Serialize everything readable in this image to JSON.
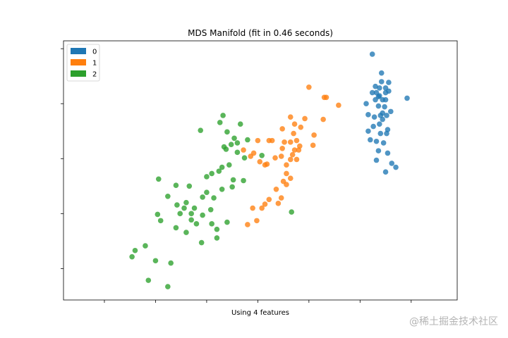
{
  "chart_data": {
    "type": "scatter",
    "title": "MDS Manifold (fit in 0.46 seconds)",
    "xlabel": "Using 4 features",
    "ylabel": "",
    "xlim": [
      -3.3,
      4.4
    ],
    "ylim": [
      -1.6,
      1.7
    ],
    "x_ticks": [
      -2.5,
      -1.5,
      -0.5,
      0.5,
      1.5,
      2.5,
      3.5
    ],
    "y_ticks": [
      -1.2,
      -0.5,
      0.2,
      0.9,
      1.6
    ],
    "grid": false,
    "legend_position": "top-left",
    "series": [
      {
        "name": "0",
        "color": "#1f77b4",
        "points": [
          [
            2.74,
            1.53
          ],
          [
            2.92,
            1.29
          ],
          [
            2.74,
            1.04
          ],
          [
            2.86,
            0.99
          ],
          [
            2.82,
            1.04
          ],
          [
            2.94,
            0.95
          ],
          [
            3.0,
            1.04
          ],
          [
            2.86,
            0.87
          ],
          [
            2.62,
            0.9
          ],
          [
            2.66,
            0.76
          ],
          [
            2.78,
            0.73
          ],
          [
            2.9,
            0.75
          ],
          [
            3.02,
            0.75
          ],
          [
            3.06,
            1.17
          ],
          [
            3.0,
            1.1
          ],
          [
            3.06,
            1.06
          ],
          [
            3.0,
            0.95
          ],
          [
            2.94,
            0.78
          ],
          [
            2.94,
            0.7
          ],
          [
            2.88,
            0.64
          ],
          [
            2.76,
            0.61
          ],
          [
            2.66,
            0.55
          ],
          [
            2.82,
            0.42
          ],
          [
            2.9,
            0.52
          ],
          [
            3.02,
            0.52
          ],
          [
            2.96,
            0.4
          ],
          [
            2.86,
            0.3
          ],
          [
            2.82,
            0.18
          ],
          [
            2.7,
            0.44
          ],
          [
            3.04,
            0.27
          ],
          [
            3.12,
            0.14
          ],
          [
            3.2,
            0.09
          ],
          [
            3.0,
            0.03
          ],
          [
            3.42,
            0.97
          ],
          [
            3.04,
            0.57
          ],
          [
            2.8,
            1.12
          ],
          [
            2.88,
            1.1
          ],
          [
            3.1,
            0.8
          ],
          [
            2.98,
            0.86
          ],
          [
            2.92,
            1.18
          ],
          [
            2.88,
            1.0
          ],
          [
            2.8,
            0.95
          ]
        ]
      },
      {
        "name": "1",
        "color": "#ff7f0e",
        "points": [
          [
            1.5,
            1.11
          ],
          [
            1.8,
            0.98
          ],
          [
            1.84,
            0.98
          ],
          [
            2.08,
            0.88
          ],
          [
            1.78,
            0.7
          ],
          [
            1.42,
            0.71
          ],
          [
            1.14,
            0.73
          ],
          [
            1.22,
            0.64
          ],
          [
            0.98,
            0.58
          ],
          [
            1.34,
            0.6
          ],
          [
            1.2,
            0.52
          ],
          [
            1.6,
            0.5
          ],
          [
            1.02,
            0.41
          ],
          [
            1.14,
            0.41
          ],
          [
            1.26,
            0.43
          ],
          [
            1.58,
            0.37
          ],
          [
            1.3,
            0.31
          ],
          [
            0.78,
            0.43
          ],
          [
            0.72,
            0.43
          ],
          [
            0.98,
            0.33
          ],
          [
            1.22,
            0.31
          ],
          [
            1.32,
            0.36
          ],
          [
            1.18,
            0.25
          ],
          [
            0.5,
            0.43
          ],
          [
            1.26,
            0.19
          ],
          [
            0.96,
            0.23
          ],
          [
            1.06,
            0.12
          ],
          [
            0.68,
            0.13
          ],
          [
            1.14,
            0.19
          ],
          [
            0.84,
            0.21
          ],
          [
            0.42,
            0.27
          ],
          [
            0.54,
            0.16
          ],
          [
            0.22,
            0.31
          ],
          [
            0.36,
            0.23
          ],
          [
            0.64,
            0.12
          ],
          [
            1.06,
            0.01
          ],
          [
            1.14,
            -0.05
          ],
          [
            1.0,
            -0.09
          ],
          [
            1.06,
            -0.13
          ],
          [
            0.86,
            -0.19
          ],
          [
            0.72,
            -0.32
          ],
          [
            0.64,
            -0.38
          ],
          [
            0.58,
            -0.43
          ],
          [
            0.4,
            -0.43
          ],
          [
            0.96,
            -0.3
          ],
          [
            0.9,
            -0.37
          ],
          [
            0.48,
            -0.59
          ],
          [
            0.3,
            -0.64
          ]
        ]
      },
      {
        "name": "2",
        "color": "#2ca02c",
        "points": [
          [
            0.3,
            0.44
          ],
          [
            0.1,
            0.4
          ],
          [
            -0.02,
            0.38
          ],
          [
            -0.12,
            0.32
          ],
          [
            0.1,
            0.28
          ],
          [
            0.24,
            0.21
          ],
          [
            0.58,
            0.24
          ],
          [
            -0.06,
            0.12
          ],
          [
            -0.2,
            0.09
          ],
          [
            -0.26,
            0.04
          ],
          [
            -0.4,
            0.01
          ],
          [
            -0.5,
            -0.03
          ],
          [
            0.02,
            -0.07
          ],
          [
            0.22,
            -0.08
          ],
          [
            0.0,
            -0.16
          ],
          [
            -0.2,
            -0.19
          ],
          [
            -0.5,
            -0.23
          ],
          [
            -0.36,
            -0.3
          ],
          [
            -0.58,
            -0.29
          ],
          [
            -1.44,
            -0.06
          ],
          [
            -1.1,
            -0.14
          ],
          [
            -1.26,
            -0.28
          ],
          [
            -1.08,
            -0.39
          ],
          [
            -1.46,
            -0.51
          ],
          [
            -1.4,
            -0.59
          ],
          [
            -0.9,
            -0.36
          ],
          [
            -0.94,
            -0.43
          ],
          [
            -1.02,
            -0.5
          ],
          [
            -0.8,
            -0.5
          ],
          [
            -0.8,
            -0.58
          ],
          [
            -0.7,
            -0.63
          ],
          [
            -0.74,
            -0.43
          ],
          [
            -0.58,
            -0.52
          ],
          [
            -0.42,
            -0.45
          ],
          [
            -0.4,
            -0.63
          ],
          [
            -0.3,
            -0.7
          ],
          [
            -0.1,
            -0.61
          ],
          [
            -0.3,
            -0.81
          ],
          [
            -0.6,
            -0.87
          ],
          [
            -0.9,
            -0.74
          ],
          [
            -1.1,
            -0.68
          ],
          [
            -1.7,
            -0.91
          ],
          [
            -1.9,
            -0.97
          ],
          [
            -1.96,
            -1.05
          ],
          [
            -1.5,
            -1.1
          ],
          [
            -1.2,
            -1.13
          ],
          [
            -1.64,
            -1.35
          ],
          [
            -1.26,
            -1.43
          ],
          [
            1.16,
            -0.48
          ],
          [
            -0.62,
            0.56
          ],
          [
            -0.24,
            0.66
          ],
          [
            -0.18,
            0.75
          ],
          [
            -0.1,
            0.54
          ],
          [
            0.16,
            0.64
          ],
          [
            -0.16,
            0.35
          ],
          [
            0.04,
            0.46
          ],
          [
            -0.84,
            -0.15
          ]
        ]
      }
    ]
  },
  "watermark": "@稀土掘金技术社区"
}
